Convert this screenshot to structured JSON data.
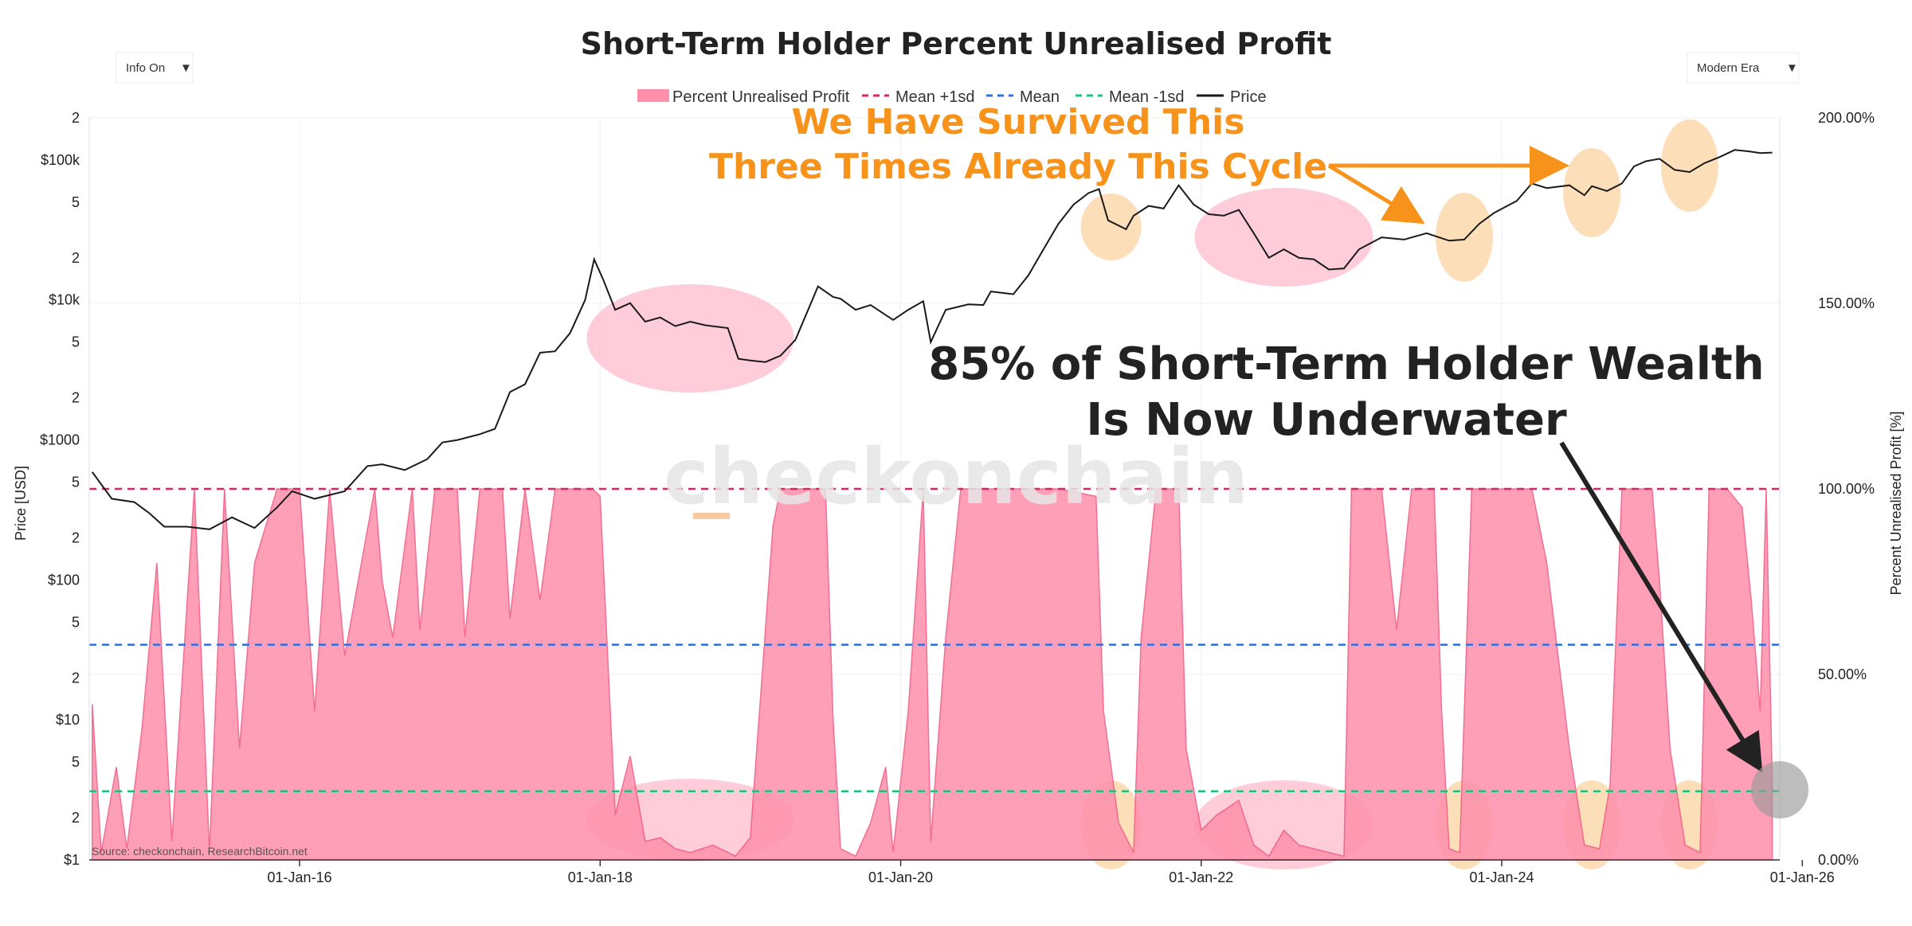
{
  "chart_data": {
    "type": "area",
    "title": "Short-Term Holder Percent Unrealised Profit",
    "controls": {
      "left_dropdown": "Info On",
      "right_dropdown": "Modern Era"
    },
    "legend": [
      "Percent Unrealised Profit",
      "Mean +1sd",
      "Mean",
      "Mean -1sd",
      "Price"
    ],
    "watermark": "checkonchain",
    "source": "Source: checkonchain, ResearchBitcoin.net",
    "y_left_label": "Price [USD]",
    "y_right_label": "Percent Unrealised Profit [%]",
    "y_left_scale": "log",
    "y_left_ticks": [
      {
        "v": 1,
        "t": "$1"
      },
      {
        "v": 2,
        "t": "2"
      },
      {
        "v": 5,
        "t": "5"
      },
      {
        "v": 10,
        "t": "$10"
      },
      {
        "v": 20,
        "t": "2"
      },
      {
        "v": 50,
        "t": "5"
      },
      {
        "v": 100,
        "t": "$100"
      },
      {
        "v": 200,
        "t": "2"
      },
      {
        "v": 500,
        "t": "5"
      },
      {
        "v": 1000,
        "t": "$1000"
      },
      {
        "v": 2000,
        "t": "2"
      },
      {
        "v": 5000,
        "t": "5"
      },
      {
        "v": 10000,
        "t": "$10k"
      },
      {
        "v": 20000,
        "t": "2"
      },
      {
        "v": 50000,
        "t": "5"
      },
      {
        "v": 100000,
        "t": "$100k"
      },
      {
        "v": 200000,
        "t": "2"
      }
    ],
    "y_right_ticks": [
      {
        "v": 0,
        "t": "0.00%"
      },
      {
        "v": 50,
        "t": "50.00%"
      },
      {
        "v": 100,
        "t": "100.00%"
      },
      {
        "v": 150,
        "t": "150.00%"
      },
      {
        "v": 200,
        "t": "200.00%"
      }
    ],
    "x_range": [
      2014.6,
      2025.85
    ],
    "x_ticks": [
      {
        "v": 2016.0,
        "t": "01-Jan-16"
      },
      {
        "v": 2018.0,
        "t": "01-Jan-18"
      },
      {
        "v": 2020.0,
        "t": "01-Jan-20"
      },
      {
        "v": 2022.0,
        "t": "01-Jan-22"
      },
      {
        "v": 2024.0,
        "t": "01-Jan-24"
      },
      {
        "v": 2026.0,
        "t": "01-Jan-26"
      }
    ],
    "mean_plus_1sd": 100,
    "mean": 58,
    "mean_minus_1sd": 18.5,
    "colors": {
      "area": "#ff8fab",
      "area_edge": "#f2557f",
      "mean_plus": "#e0245e",
      "mean": "#2f6fe0",
      "mean_minus": "#17c47a",
      "price": "#1a1a1a",
      "orange": "#f7931a",
      "highlight_orange": "#fbd7a8",
      "highlight_pink": "#ffc1cf"
    },
    "price_series": [
      [
        2014.62,
        590
      ],
      [
        2014.75,
        380
      ],
      [
        2014.9,
        360
      ],
      [
        2015.0,
        300
      ],
      [
        2015.1,
        240
      ],
      [
        2015.25,
        240
      ],
      [
        2015.4,
        230
      ],
      [
        2015.55,
        280
      ],
      [
        2015.7,
        235
      ],
      [
        2015.85,
        330
      ],
      [
        2015.95,
        430
      ],
      [
        2016.1,
        380
      ],
      [
        2016.3,
        430
      ],
      [
        2016.45,
        650
      ],
      [
        2016.55,
        670
      ],
      [
        2016.7,
        610
      ],
      [
        2016.85,
        730
      ],
      [
        2016.95,
        960
      ],
      [
        2017.05,
        1000
      ],
      [
        2017.2,
        1100
      ],
      [
        2017.3,
        1200
      ],
      [
        2017.4,
        2200
      ],
      [
        2017.5,
        2500
      ],
      [
        2017.6,
        4200
      ],
      [
        2017.7,
        4300
      ],
      [
        2017.8,
        5800
      ],
      [
        2017.9,
        10000
      ],
      [
        2017.96,
        19500
      ],
      [
        2018.02,
        14000
      ],
      [
        2018.1,
        8500
      ],
      [
        2018.2,
        9500
      ],
      [
        2018.3,
        7000
      ],
      [
        2018.4,
        7500
      ],
      [
        2018.5,
        6500
      ],
      [
        2018.6,
        7000
      ],
      [
        2018.7,
        6600
      ],
      [
        2018.85,
        6300
      ],
      [
        2018.92,
        3800
      ],
      [
        2019.0,
        3700
      ],
      [
        2019.1,
        3600
      ],
      [
        2019.2,
        4000
      ],
      [
        2019.3,
        5200
      ],
      [
        2019.45,
        12500
      ],
      [
        2019.55,
        10500
      ],
      [
        2019.6,
        10200
      ],
      [
        2019.7,
        8500
      ],
      [
        2019.8,
        9200
      ],
      [
        2019.95,
        7200
      ],
      [
        2020.05,
        8500
      ],
      [
        2020.15,
        9800
      ],
      [
        2020.2,
        5000
      ],
      [
        2020.3,
        8500
      ],
      [
        2020.45,
        9300
      ],
      [
        2020.55,
        9200
      ],
      [
        2020.6,
        11500
      ],
      [
        2020.75,
        11000
      ],
      [
        2020.85,
        15000
      ],
      [
        2020.95,
        23000
      ],
      [
        2021.05,
        35000
      ],
      [
        2021.15,
        48000
      ],
      [
        2021.25,
        58000
      ],
      [
        2021.32,
        62000
      ],
      [
        2021.38,
        37000
      ],
      [
        2021.5,
        32000
      ],
      [
        2021.55,
        40000
      ],
      [
        2021.65,
        47000
      ],
      [
        2021.75,
        45000
      ],
      [
        2021.85,
        66000
      ],
      [
        2021.95,
        48000
      ],
      [
        2022.05,
        41000
      ],
      [
        2022.15,
        40000
      ],
      [
        2022.25,
        44000
      ],
      [
        2022.35,
        30000
      ],
      [
        2022.45,
        20000
      ],
      [
        2022.55,
        23000
      ],
      [
        2022.65,
        20000
      ],
      [
        2022.75,
        19500
      ],
      [
        2022.85,
        16500
      ],
      [
        2022.95,
        16800
      ],
      [
        2023.05,
        23000
      ],
      [
        2023.2,
        28000
      ],
      [
        2023.35,
        27000
      ],
      [
        2023.5,
        30000
      ],
      [
        2023.65,
        26500
      ],
      [
        2023.75,
        27000
      ],
      [
        2023.85,
        35000
      ],
      [
        2023.95,
        42000
      ],
      [
        2024.1,
        51000
      ],
      [
        2024.2,
        68000
      ],
      [
        2024.3,
        63000
      ],
      [
        2024.45,
        66000
      ],
      [
        2024.55,
        56000
      ],
      [
        2024.6,
        65000
      ],
      [
        2024.7,
        60000
      ],
      [
        2024.8,
        68000
      ],
      [
        2024.88,
        90000
      ],
      [
        2024.96,
        98000
      ],
      [
        2025.05,
        102000
      ],
      [
        2025.15,
        85000
      ],
      [
        2025.25,
        82000
      ],
      [
        2025.35,
        95000
      ],
      [
        2025.45,
        105000
      ],
      [
        2025.55,
        118000
      ],
      [
        2025.65,
        115000
      ],
      [
        2025.72,
        112000
      ],
      [
        2025.8,
        113000
      ]
    ],
    "unrealised_profit_series": [
      [
        2014.62,
        42
      ],
      [
        2014.68,
        2
      ],
      [
        2014.78,
        25
      ],
      [
        2014.85,
        3
      ],
      [
        2014.95,
        35
      ],
      [
        2015.05,
        80
      ],
      [
        2015.15,
        5
      ],
      [
        2015.3,
        100
      ],
      [
        2015.4,
        2
      ],
      [
        2015.5,
        100
      ],
      [
        2015.6,
        30
      ],
      [
        2015.7,
        80
      ],
      [
        2015.85,
        100
      ],
      [
        2016.0,
        100
      ],
      [
        2016.1,
        40
      ],
      [
        2016.2,
        100
      ],
      [
        2016.3,
        55
      ],
      [
        2016.5,
        100
      ],
      [
        2016.55,
        75
      ],
      [
        2016.62,
        60
      ],
      [
        2016.75,
        100
      ],
      [
        2016.8,
        62
      ],
      [
        2016.9,
        100
      ],
      [
        2017.05,
        100
      ],
      [
        2017.1,
        60
      ],
      [
        2017.2,
        100
      ],
      [
        2017.35,
        100
      ],
      [
        2017.4,
        65
      ],
      [
        2017.5,
        100
      ],
      [
        2017.6,
        70
      ],
      [
        2017.7,
        100
      ],
      [
        2017.95,
        100
      ],
      [
        2018.0,
        98
      ],
      [
        2018.1,
        12
      ],
      [
        2018.2,
        28
      ],
      [
        2018.3,
        5
      ],
      [
        2018.4,
        6
      ],
      [
        2018.5,
        3
      ],
      [
        2018.6,
        2
      ],
      [
        2018.75,
        4
      ],
      [
        2018.9,
        1
      ],
      [
        2019.0,
        6
      ],
      [
        2019.15,
        90
      ],
      [
        2019.2,
        100
      ],
      [
        2019.3,
        100
      ],
      [
        2019.5,
        100
      ],
      [
        2019.55,
        38
      ],
      [
        2019.6,
        3
      ],
      [
        2019.7,
        1
      ],
      [
        2019.8,
        10
      ],
      [
        2019.9,
        25
      ],
      [
        2019.95,
        2
      ],
      [
        2020.05,
        40
      ],
      [
        2020.15,
        100
      ],
      [
        2020.2,
        5
      ],
      [
        2020.3,
        60
      ],
      [
        2020.4,
        100
      ],
      [
        2020.6,
        100
      ],
      [
        2020.75,
        100
      ],
      [
        2020.95,
        100
      ],
      [
        2021.05,
        100
      ],
      [
        2021.3,
        98
      ],
      [
        2021.35,
        40
      ],
      [
        2021.45,
        10
      ],
      [
        2021.55,
        2
      ],
      [
        2021.6,
        60
      ],
      [
        2021.7,
        100
      ],
      [
        2021.85,
        100
      ],
      [
        2021.9,
        30
      ],
      [
        2022.0,
        8
      ],
      [
        2022.1,
        12
      ],
      [
        2022.25,
        16
      ],
      [
        2022.35,
        4
      ],
      [
        2022.45,
        1
      ],
      [
        2022.55,
        8
      ],
      [
        2022.65,
        4
      ],
      [
        2022.75,
        3
      ],
      [
        2022.85,
        2
      ],
      [
        2022.95,
        1
      ],
      [
        2023.0,
        100
      ],
      [
        2023.2,
        100
      ],
      [
        2023.3,
        62
      ],
      [
        2023.4,
        100
      ],
      [
        2023.55,
        100
      ],
      [
        2023.6,
        40
      ],
      [
        2023.65,
        3
      ],
      [
        2023.72,
        2
      ],
      [
        2023.8,
        100
      ],
      [
        2024.0,
        100
      ],
      [
        2024.2,
        100
      ],
      [
        2024.3,
        80
      ],
      [
        2024.45,
        30
      ],
      [
        2024.55,
        4
      ],
      [
        2024.65,
        3
      ],
      [
        2024.72,
        20
      ],
      [
        2024.8,
        100
      ],
      [
        2025.0,
        100
      ],
      [
        2025.05,
        75
      ],
      [
        2025.12,
        30
      ],
      [
        2025.22,
        4
      ],
      [
        2025.32,
        2
      ],
      [
        2025.38,
        100
      ],
      [
        2025.5,
        100
      ],
      [
        2025.6,
        95
      ],
      [
        2025.66,
        70
      ],
      [
        2025.72,
        40
      ],
      [
        2025.76,
        100
      ],
      [
        2025.8,
        20
      ]
    ],
    "annotations": {
      "headline": [
        "We Have Survived This",
        "Three Times Already This Cycle"
      ],
      "callout": [
        "85% of Short-Term Holder Wealth",
        "Is Now Underwater"
      ]
    }
  }
}
